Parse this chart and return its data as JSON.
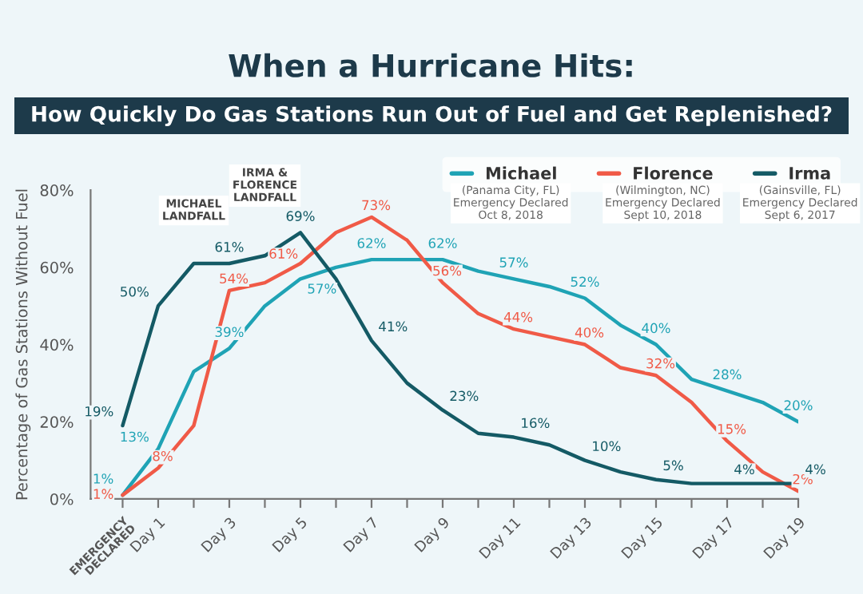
{
  "chart_data": {
    "type": "line",
    "title": "When a Hurricane Hits:",
    "subtitle": "How Quickly Do Gas Stations Run Out of Fuel and Get Replenished?",
    "ylabel": "Percentage of Gas Stations Without Fuel",
    "categories": [
      "EMERGENCY\nDECLARED",
      "Day 1",
      null,
      "Day 3",
      null,
      "Day 5",
      null,
      "Day 7",
      null,
      "Day 9",
      null,
      "Day 11",
      null,
      "Day 13",
      null,
      "Day 15",
      null,
      "Day 17",
      null,
      "Day 19"
    ],
    "ylim": [
      0,
      80
    ],
    "yticks": [
      {
        "value": 0,
        "label": "0%"
      },
      {
        "value": 20,
        "label": "20%"
      },
      {
        "value": 40,
        "label": "40%"
      },
      {
        "value": 60,
        "label": "60%"
      },
      {
        "value": 80,
        "label": "80%"
      }
    ],
    "series": [
      {
        "name": "Michael",
        "color": "#1fa3b5",
        "values": [
          1,
          13,
          33,
          39,
          50,
          57,
          60,
          62,
          62,
          62,
          59,
          57,
          55,
          52,
          45,
          40,
          31,
          28,
          25,
          20
        ],
        "value_labels": [
          "1%",
          "13%",
          null,
          "39%",
          null,
          "57%",
          null,
          "62%",
          null,
          "62%",
          null,
          "57%",
          null,
          "52%",
          null,
          "40%",
          null,
          "28%",
          null,
          "20%"
        ]
      },
      {
        "name": "Florence",
        "color": "#f05a47",
        "values": [
          1,
          8,
          19,
          54,
          56,
          61,
          69,
          73,
          67,
          56,
          48,
          44,
          42,
          40,
          34,
          32,
          25,
          15,
          7,
          2
        ],
        "value_labels": [
          "1%",
          "8%",
          null,
          "54%",
          null,
          "61%",
          null,
          "73%",
          null,
          "56%",
          null,
          "44%",
          null,
          "40%",
          null,
          "32%",
          null,
          "15%",
          null,
          "2%"
        ]
      },
      {
        "name": "Irma",
        "color": "#145a65",
        "values": [
          19,
          50,
          61,
          61,
          63,
          69,
          57,
          41,
          30,
          23,
          17,
          16,
          14,
          10,
          7,
          5,
          4,
          4,
          4,
          4
        ],
        "value_labels": [
          "19%",
          "50%",
          null,
          "61%",
          null,
          "69%",
          null,
          "41%",
          null,
          "23%",
          null,
          "16%",
          null,
          "10%",
          null,
          "5%",
          null,
          "4%",
          null,
          "4%"
        ]
      }
    ],
    "annotations": [
      "(Panama City, FL)\nEmergency Declared\nOct 8, 2018",
      "(Wilmington, NC)\nEmergency Declared\nSept 10, 2018",
      "(Gainsville, FL)\nEmergency Declared\nSept 6, 2017",
      "MICHAEL\nLANDFALL",
      "IRMA &\nFLORENCE\nLANDFALL"
    ],
    "legend": "top right",
    "grid": false,
    "marker": "none",
    "line_style": "solid"
  }
}
